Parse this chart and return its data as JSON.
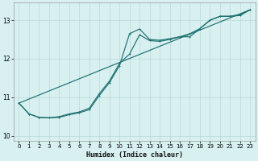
{
  "xlabel": "Humidex (Indice chaleur)",
  "ylabel": "",
  "background_color": "#d8f0f0",
  "grid_color": "#b8d8d8",
  "line_color": "#1e7070",
  "xlim": [
    -0.5,
    23.5
  ],
  "ylim": [
    9.88,
    13.45
  ],
  "x_ticks": [
    0,
    1,
    2,
    3,
    4,
    5,
    6,
    7,
    8,
    9,
    10,
    11,
    12,
    13,
    14,
    15,
    16,
    17,
    18,
    19,
    20,
    21,
    22,
    23
  ],
  "y_ticks": [
    10,
    11,
    12,
    13
  ],
  "line1_x": [
    0,
    1,
    2,
    3,
    4,
    5,
    6,
    7,
    8,
    9,
    10,
    11,
    12,
    13,
    14,
    15,
    16,
    17,
    18,
    19,
    20,
    21,
    22,
    23
  ],
  "line1_y": [
    10.85,
    10.57,
    10.48,
    10.47,
    10.48,
    10.55,
    10.6,
    10.68,
    11.05,
    11.38,
    11.82,
    12.65,
    12.77,
    12.5,
    12.48,
    12.52,
    12.57,
    12.57,
    12.78,
    13.0,
    13.1,
    13.1,
    13.12,
    13.27
  ],
  "line2_x": [
    0,
    1,
    2,
    3,
    4,
    5,
    6,
    7,
    8,
    9,
    10,
    11,
    12,
    13,
    14,
    15,
    16,
    17,
    18,
    19,
    20,
    21,
    22,
    23
  ],
  "line2_y": [
    10.85,
    10.57,
    10.48,
    10.47,
    10.5,
    10.57,
    10.62,
    10.72,
    11.1,
    11.42,
    11.88,
    12.12,
    12.62,
    12.47,
    12.45,
    12.5,
    12.57,
    12.65,
    12.78,
    13.0,
    13.1,
    13.1,
    13.15,
    13.27
  ],
  "line3_x": [
    0,
    23
  ],
  "line3_y": [
    10.85,
    13.27
  ]
}
